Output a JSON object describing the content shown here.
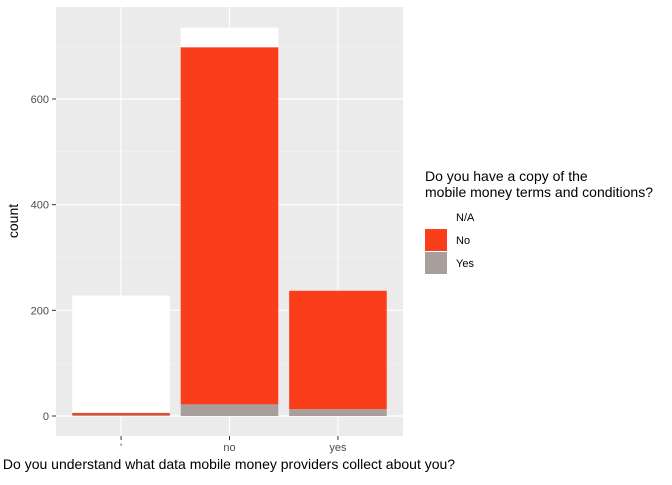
{
  "chart_data": {
    "type": "bar",
    "stacked": true,
    "title": "",
    "xlabel": "Do you understand what data mobile money providers collect about you?",
    "ylabel": "count",
    "categories": [
      "'",
      "no",
      "yes"
    ],
    "ylim": [
      0,
      760
    ],
    "yticks": [
      0,
      200,
      400,
      600
    ],
    "grid": true,
    "legend_position": "right",
    "legend_title": "Do you have a copy of the\nmobile money terms and conditions?",
    "series": [
      {
        "name": "Yes",
        "color": "#a89f9c",
        "values": [
          2,
          22,
          13
        ]
      },
      {
        "name": "No",
        "color": "#fa3e1c",
        "values": [
          4,
          676,
          224
        ]
      },
      {
        "name": "N/A",
        "color": "#ffffff",
        "values": [
          222,
          37,
          0
        ]
      }
    ],
    "legend_order": [
      "N/A",
      "No",
      "Yes"
    ]
  }
}
